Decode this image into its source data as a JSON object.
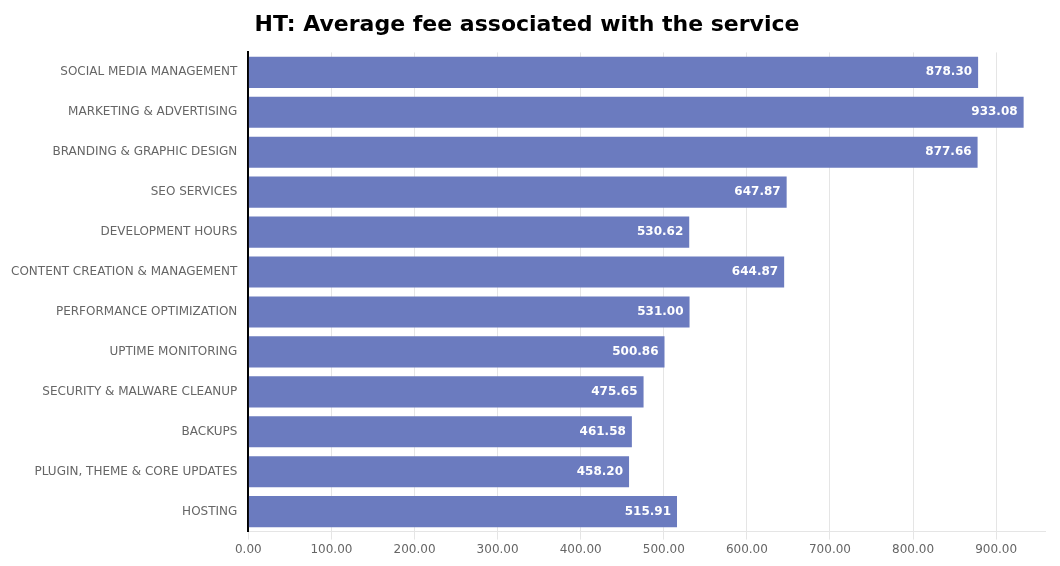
{
  "chart_data": {
    "type": "bar",
    "orientation": "horizontal",
    "title": "HT: Average fee associated with the service",
    "categories": [
      "HOSTING",
      "PLUGIN, THEME & CORE UPDATES",
      "BACKUPS",
      "SECURITY & MALWARE CLEANUP",
      "UPTIME MONITORING",
      "PERFORMANCE OPTIMIZATION",
      "CONTENT CREATION & MANAGEMENT",
      "DEVELOPMENT HOURS",
      "SEO SERVICES",
      "BRANDING & GRAPHIC DESIGN",
      "MARKETING & ADVERTISING",
      "SOCIAL MEDIA MANAGEMENT"
    ],
    "values": [
      515.91,
      458.2,
      461.58,
      475.65,
      500.86,
      531.0,
      644.87,
      530.62,
      647.87,
      877.66,
      933.08,
      878.3
    ],
    "value_labels": [
      "515.91",
      "458.20",
      "461.58",
      "475.65",
      "500.86",
      "531.00",
      "644.87",
      "530.62",
      "647.87",
      "877.66",
      "933.08",
      "878.30"
    ],
    "color": "#6b7bbf",
    "xlim": [
      0,
      960
    ],
    "xticks": [
      {
        "value": 0,
        "label": "0.00"
      },
      {
        "value": 100,
        "label": "100.00"
      },
      {
        "value": 200,
        "label": "200.00"
      },
      {
        "value": 300,
        "label": "300.00"
      },
      {
        "value": 400,
        "label": "400.00"
      },
      {
        "value": 500,
        "label": "500.00"
      },
      {
        "value": 600,
        "label": "600.00"
      },
      {
        "value": 700,
        "label": "700.00"
      },
      {
        "value": 800,
        "label": "800.00"
      },
      {
        "value": 900,
        "label": "900.00"
      }
    ],
    "grid": true,
    "data_labels": true
  }
}
